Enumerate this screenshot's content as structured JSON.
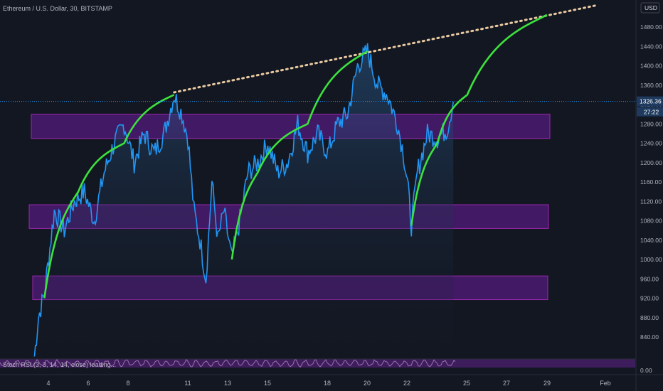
{
  "legend": "Ethereum / U.S. Dollar, 30, BITSTAMP",
  "currency_button": "USD",
  "price_label": "1326.36",
  "countdown_label": "27:22",
  "oscillator_label": "Stoch RSI (3, 3, 14, 14, close) loading...",
  "colors": {
    "background": "#131722",
    "price_line": "#2196f3",
    "area_fill": "#1e3a5f",
    "zone_fill": "#6a1b9a",
    "zone_border": "#9c27b0",
    "projection": "#3de23d",
    "trendline": "#e8c9a0",
    "axis_text": "#b2b5be",
    "osc_fill": "#4a1f6b"
  },
  "chart_data": {
    "type": "line",
    "title": "Ethereum / U.S. Dollar, 30, BITSTAMP",
    "y_ticks": [
      840,
      880,
      920,
      960,
      1000,
      1040,
      1080,
      1120,
      1160,
      1200,
      1240,
      1280,
      1320,
      1360,
      1400,
      1440,
      1480
    ],
    "x_ticks": [
      "4",
      "6",
      "8",
      "11",
      "13",
      "15",
      "18",
      "20",
      "22",
      "25",
      "27",
      "29",
      "Feb"
    ],
    "ylim": [
      800,
      1520
    ],
    "xlim": [
      "Jan 3",
      "Feb 1"
    ],
    "price_series": [
      {
        "x": "Jan 3.3",
        "y": 800
      },
      {
        "x": "Jan 3.5",
        "y": 880
      },
      {
        "x": "Jan 3.8",
        "y": 930
      },
      {
        "x": "Jan 4.3",
        "y": 1100
      },
      {
        "x": "Jan 4.8",
        "y": 1060
      },
      {
        "x": "Jan 5.3",
        "y": 1120
      },
      {
        "x": "Jan 5.8",
        "y": 1140
      },
      {
        "x": "Jan 6.3",
        "y": 1080
      },
      {
        "x": "Jan 6.8",
        "y": 1180
      },
      {
        "x": "Jan 7.3",
        "y": 1240
      },
      {
        "x": "Jan 7.8",
        "y": 1280
      },
      {
        "x": "Jan 8.3",
        "y": 1200
      },
      {
        "x": "Jan 8.8",
        "y": 1260
      },
      {
        "x": "Jan 9.3",
        "y": 1220
      },
      {
        "x": "Jan 9.8",
        "y": 1260
      },
      {
        "x": "Jan 10.3",
        "y": 1340
      },
      {
        "x": "Jan 10.7",
        "y": 1300
      },
      {
        "x": "Jan 11.0",
        "y": 1250
      },
      {
        "x": "Jan 11.3",
        "y": 1100
      },
      {
        "x": "Jan 11.6",
        "y": 1040
      },
      {
        "x": "Jan 11.9",
        "y": 960
      },
      {
        "x": "Jan 12.2",
        "y": 1160
      },
      {
        "x": "Jan 12.5",
        "y": 1040
      },
      {
        "x": "Jan 12.8",
        "y": 1100
      },
      {
        "x": "Jan 13.2",
        "y": 1000
      },
      {
        "x": "Jan 13.6",
        "y": 1080
      },
      {
        "x": "Jan 14.0",
        "y": 1180
      },
      {
        "x": "Jan 14.5",
        "y": 1200
      },
      {
        "x": "Jan 15.0",
        "y": 1240
      },
      {
        "x": "Jan 15.5",
        "y": 1180
      },
      {
        "x": "Jan 16.0",
        "y": 1200
      },
      {
        "x": "Jan 16.5",
        "y": 1280
      },
      {
        "x": "Jan 17.0",
        "y": 1220
      },
      {
        "x": "Jan 17.5",
        "y": 1260
      },
      {
        "x": "Jan 18.0",
        "y": 1220
      },
      {
        "x": "Jan 18.5",
        "y": 1280
      },
      {
        "x": "Jan 19.0",
        "y": 1300
      },
      {
        "x": "Jan 19.5",
        "y": 1400
      },
      {
        "x": "Jan 20.0",
        "y": 1430
      },
      {
        "x": "Jan 20.5",
        "y": 1360
      },
      {
        "x": "Jan 21.0",
        "y": 1340
      },
      {
        "x": "Jan 21.5",
        "y": 1280
      },
      {
        "x": "Jan 21.8",
        "y": 1220
      },
      {
        "x": "Jan 22.0",
        "y": 1160
      },
      {
        "x": "Jan 22.2",
        "y": 1070
      },
      {
        "x": "Jan 22.5",
        "y": 1180
      },
      {
        "x": "Jan 23.0",
        "y": 1260
      },
      {
        "x": "Jan 23.5",
        "y": 1250
      },
      {
        "x": "Jan 24.0",
        "y": 1270
      },
      {
        "x": "Jan 24.3",
        "y": 1326
      }
    ],
    "projections": [
      {
        "points": [
          {
            "x": "Jan 3.8",
            "y": 920
          },
          {
            "x": "Jan 5.5",
            "y": 1140
          },
          {
            "x": "Jan 7.8",
            "y": 1240
          },
          {
            "x": "Jan 10.3",
            "y": 1340
          }
        ]
      },
      {
        "points": [
          {
            "x": "Jan 13.2",
            "y": 1000
          },
          {
            "x": "Jan 14.5",
            "y": 1180
          },
          {
            "x": "Jan 17.0",
            "y": 1280
          },
          {
            "x": "Jan 20.0",
            "y": 1430
          }
        ]
      },
      {
        "points": [
          {
            "x": "Jan 22.2",
            "y": 1070
          },
          {
            "x": "Jan 23.5",
            "y": 1240
          },
          {
            "x": "Jan 25.0",
            "y": 1340
          },
          {
            "x": "Jan 29.0",
            "y": 1505
          }
        ]
      }
    ],
    "trendline": [
      {
        "x": "Jan 10.3",
        "y": 1345
      },
      {
        "x": "Jan 31.5",
        "y": 1525
      }
    ],
    "zones": [
      {
        "y_low": 1250,
        "y_high": 1300
      },
      {
        "y_low": 1064,
        "y_high": 1113
      },
      {
        "y_low": 917,
        "y_high": 966
      }
    ],
    "current_price": 1326.36,
    "oscillator_ticks": [
      "0.00"
    ]
  }
}
